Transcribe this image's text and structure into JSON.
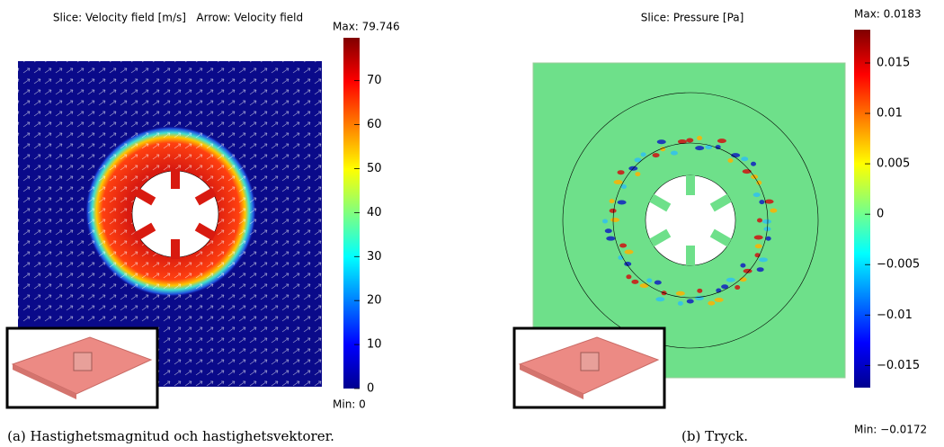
{
  "panels": [
    {
      "title": "Slice: Velocity field [m/s]   Arrow: Velocity field",
      "colorbar": {
        "min": 0,
        "max": 79.746,
        "max_label": "Max: 79.746",
        "min_label": "Min: 0",
        "ticks": [
          0,
          10,
          20,
          30,
          40,
          50,
          60,
          70
        ]
      },
      "caption": "(a) Hastighetsmagnitud och hastighetsvektorer."
    },
    {
      "title": "Slice: Pressure [Pa]",
      "colorbar": {
        "min": -0.0172,
        "max": 0.0183,
        "max_label": "Max: 0.0183",
        "min_label": "Min: −0.0172",
        "ticks": [
          {
            "value": -0.015,
            "label": "−0.015"
          },
          {
            "value": -0.01,
            "label": "−0.01"
          },
          {
            "value": -0.005,
            "label": "−0.005"
          },
          0,
          0.005,
          0.01,
          0.015
        ]
      },
      "caption": "(b) Tryck."
    }
  ]
}
